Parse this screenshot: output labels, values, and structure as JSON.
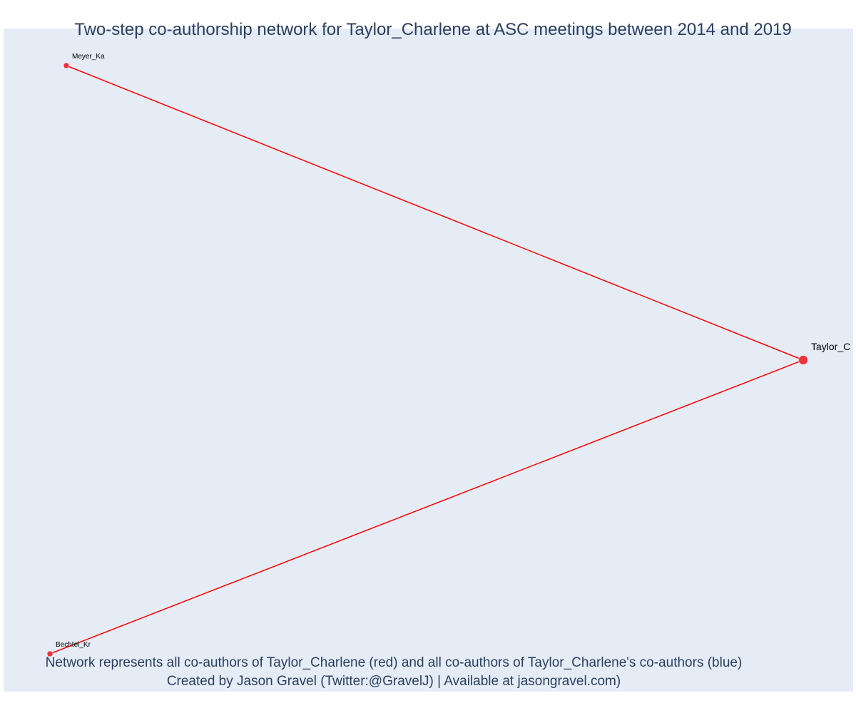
{
  "title": "Two-step co-authorship network for Taylor_Charlene at ASC meetings between 2014 and 2019",
  "caption_line1": "Network represents all co-authors of Taylor_Charlene (red) and all co-authors of Taylor_Charlene's co-authors (blue)",
  "caption_line2": "Created by Jason Gravel (Twitter:@GravelJ) | Available at jasongravel.com)",
  "colors": {
    "background": "#e5ecf6",
    "edge": "#ff0000",
    "node": "#ef3340",
    "text": "#2a3f5f"
  },
  "nodes": [
    {
      "id": "taylor",
      "label": "Taylor_C",
      "role": "focal"
    },
    {
      "id": "meyer",
      "label": "Meyer_Ka",
      "role": "co-author"
    },
    {
      "id": "bechtel",
      "label": "Bechtel_Kr",
      "role": "co-author"
    }
  ],
  "edges": [
    {
      "source": "taylor",
      "target": "meyer"
    },
    {
      "source": "taylor",
      "target": "bechtel"
    }
  ]
}
